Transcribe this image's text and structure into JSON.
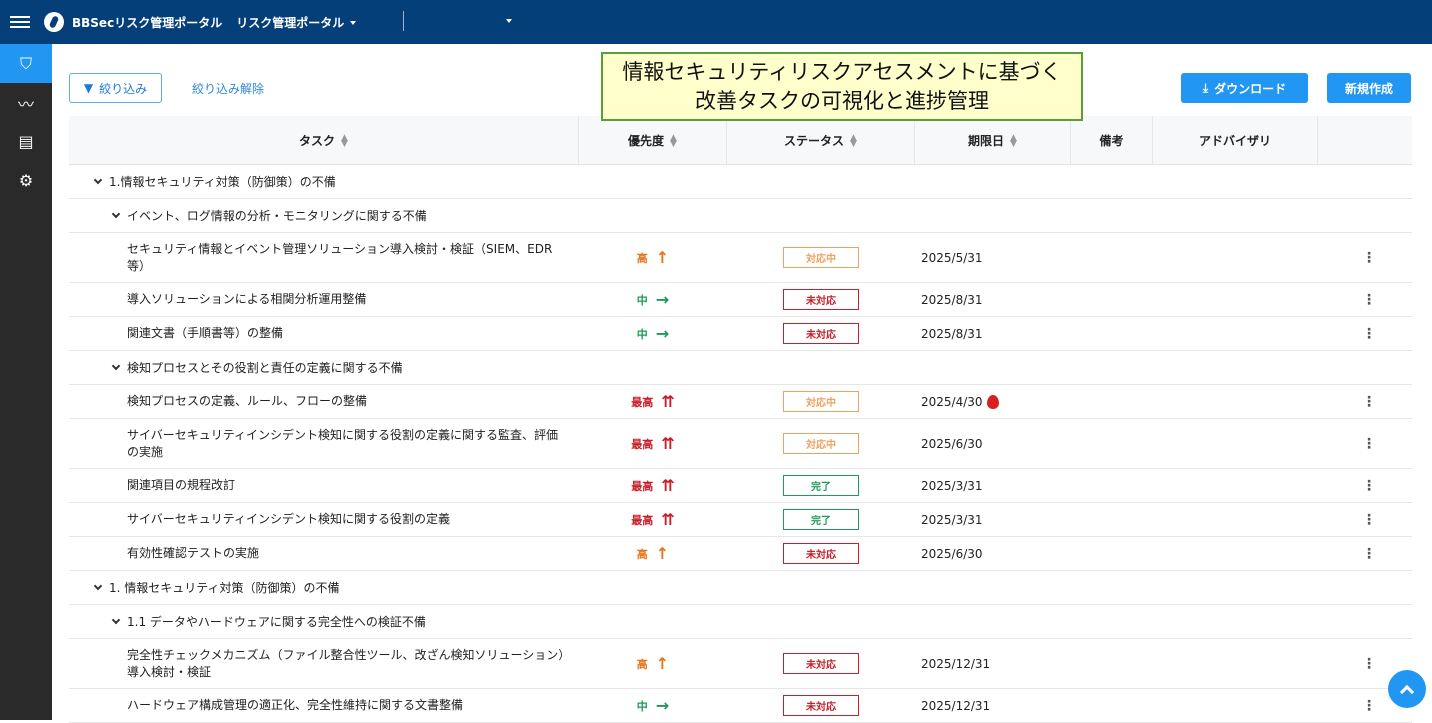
{
  "header": {
    "app_title": "BBSecリスク管理ポータル",
    "portal_select": "リスク管理ポータル",
    "second_select": ""
  },
  "sidebar": {
    "items": [
      {
        "icon": "shield-search-icon",
        "active": true
      },
      {
        "icon": "analytics-icon"
      },
      {
        "icon": "list-icon"
      },
      {
        "icon": "gear-icon"
      }
    ]
  },
  "toolbar": {
    "filter_label": "絞り込み",
    "clear_filter_label": "絞り込み解除",
    "download_label": "ダウンロード",
    "new_label": "新規作成"
  },
  "callout": {
    "line1": "情報セキュリティリスクアセスメントに基づく",
    "line2": "改善タスクの可視化と進捗管理"
  },
  "columns": [
    "タスク",
    "優先度",
    "ステータス",
    "期限日",
    "備考",
    "アドバイザリ"
  ],
  "colors": {
    "high": "#e8731a",
    "medium": "#1f9a5a",
    "highest": "#c8202a",
    "in_progress": "#f0a060",
    "not_started": "#c8202a",
    "done": "#1f9a5a",
    "accent": "#2196f3",
    "topbar": "#053f7a"
  },
  "rows": [
    {
      "type": "group",
      "label": "1.情報セキュリティ対策（防御策）の不備"
    },
    {
      "type": "sub",
      "label": "イベント、ログ情報の分析・モニタリングに関する不備"
    },
    {
      "type": "task",
      "label": "セキュリティ情報とイベント管理ソリューション導入検討・検証（SIEM、EDR等）",
      "priority": "高",
      "priority_level": "high",
      "status": "対応中",
      "status_key": "in_progress",
      "due": "2025/5/31",
      "tall": true
    },
    {
      "type": "task",
      "label": "導入ソリューションによる相関分析運用整備",
      "priority": "中",
      "priority_level": "medium",
      "status": "未対応",
      "status_key": "not_started",
      "due": "2025/8/31"
    },
    {
      "type": "task",
      "label": "関連文書（手順書等）の整備",
      "priority": "中",
      "priority_level": "medium",
      "status": "未対応",
      "status_key": "not_started",
      "due": "2025/8/31"
    },
    {
      "type": "sub",
      "label": "検知プロセスとその役割と責任の定義に関する不備"
    },
    {
      "type": "task",
      "label": "検知プロセスの定義、ルール、フローの整備",
      "priority": "最高",
      "priority_level": "highest",
      "status": "対応中",
      "status_key": "in_progress",
      "due": "2025/4/30",
      "overdue": true
    },
    {
      "type": "task",
      "label": "サイバーセキュリティインシデント検知に関する役割の定義に関する監査、評価の実施",
      "priority": "最高",
      "priority_level": "highest",
      "status": "対応中",
      "status_key": "in_progress",
      "due": "2025/6/30",
      "tall": true
    },
    {
      "type": "task",
      "label": "関連項目の規程改訂",
      "priority": "最高",
      "priority_level": "highest",
      "status": "完了",
      "status_key": "done",
      "due": "2025/3/31"
    },
    {
      "type": "task",
      "label": "サイバーセキュリティインシデント検知に関する役割の定義",
      "priority": "最高",
      "priority_level": "highest",
      "status": "完了",
      "status_key": "done",
      "due": "2025/3/31"
    },
    {
      "type": "task",
      "label": "有効性確認テストの実施",
      "priority": "高",
      "priority_level": "high",
      "status": "未対応",
      "status_key": "not_started",
      "due": "2025/6/30"
    },
    {
      "type": "group",
      "label": "1. 情報セキュリティ対策（防御策）の不備"
    },
    {
      "type": "sub",
      "label": "1.1 データやハードウェアに関する完全性への検証不備"
    },
    {
      "type": "task",
      "label": "完全性チェックメカニズム（ファイル整合性ツール、改ざん検知ソリューション）導入検討・検証",
      "priority": "高",
      "priority_level": "high",
      "status": "未対応",
      "status_key": "not_started",
      "due": "2025/12/31",
      "tall": true
    },
    {
      "type": "task",
      "label": "ハードウェア構成管理の適正化、完全性維持に関する文書整備",
      "priority": "中",
      "priority_level": "medium",
      "status": "未対応",
      "status_key": "not_started",
      "due": "2025/12/31"
    }
  ]
}
